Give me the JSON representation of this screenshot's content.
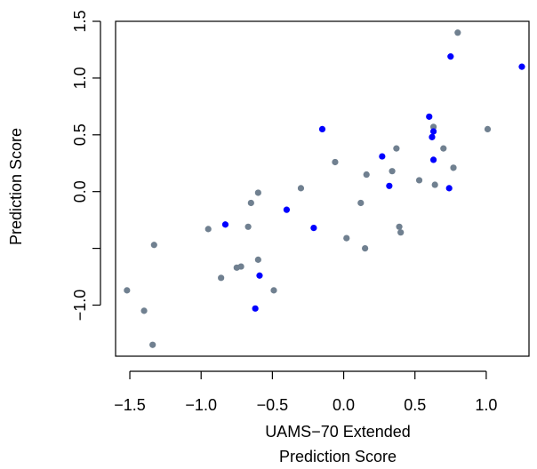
{
  "chart_data": {
    "type": "scatter",
    "title": "",
    "xlabel": [
      "UAMS−70 Extended",
      "Prediction Score"
    ],
    "ylabel": "Prediction Score",
    "xlim": [
      -1.6,
      1.3
    ],
    "ylim": [
      -1.45,
      1.5
    ],
    "x_ticks": [
      -1.5,
      -1.0,
      -0.5,
      0.0,
      0.5,
      1.0
    ],
    "x_tick_labels": [
      "−1.5",
      "−1.0",
      "−0.5",
      "0.0",
      "0.5",
      "1.0"
    ],
    "y_ticks": [
      -1.0,
      -0.5,
      0.0,
      0.5,
      1.0,
      1.5
    ],
    "y_tick_labels": [
      "−1.0",
      "",
      "0.0",
      "0.5",
      "1.0",
      "1.5"
    ],
    "grid": false,
    "colors": {
      "grey": "#708090",
      "blue": "#0000ff"
    },
    "series": [
      {
        "color": "#708090",
        "points": [
          [
            0.8,
            1.4
          ],
          [
            1.01,
            0.55
          ],
          [
            0.77,
            0.21
          ],
          [
            0.7,
            0.38
          ],
          [
            0.64,
            0.06
          ],
          [
            0.63,
            0.57
          ],
          [
            0.53,
            0.1
          ],
          [
            0.37,
            0.38
          ],
          [
            0.34,
            0.18
          ],
          [
            0.39,
            -0.31
          ],
          [
            0.4,
            -0.36
          ],
          [
            0.16,
            0.15
          ],
          [
            0.15,
            -0.5
          ],
          [
            0.12,
            -0.1
          ],
          [
            0.02,
            -0.41
          ],
          [
            -0.06,
            0.26
          ],
          [
            -0.3,
            0.03
          ],
          [
            -0.6,
            -0.6
          ],
          [
            -0.6,
            -0.01
          ],
          [
            -0.65,
            -0.1
          ],
          [
            -0.67,
            -0.31
          ],
          [
            -0.72,
            -0.66
          ],
          [
            -0.75,
            -0.67
          ],
          [
            -0.86,
            -0.76
          ],
          [
            -0.95,
            -0.33
          ],
          [
            -0.49,
            -0.87
          ],
          [
            -1.33,
            -0.47
          ],
          [
            -1.52,
            -0.87
          ],
          [
            -1.4,
            -1.05
          ],
          [
            -1.34,
            -1.35
          ]
        ]
      },
      {
        "color": "#0000ff",
        "points": [
          [
            1.25,
            1.1
          ],
          [
            0.75,
            1.19
          ],
          [
            0.6,
            0.66
          ],
          [
            0.63,
            0.53
          ],
          [
            0.62,
            0.48
          ],
          [
            0.63,
            0.28
          ],
          [
            0.74,
            0.03
          ],
          [
            0.27,
            0.31
          ],
          [
            0.32,
            0.05
          ],
          [
            -0.15,
            0.55
          ],
          [
            -0.4,
            -0.16
          ],
          [
            -0.21,
            -0.32
          ],
          [
            -0.83,
            -0.29
          ],
          [
            -0.59,
            -0.74
          ],
          [
            -0.62,
            -1.03
          ]
        ]
      }
    ]
  }
}
